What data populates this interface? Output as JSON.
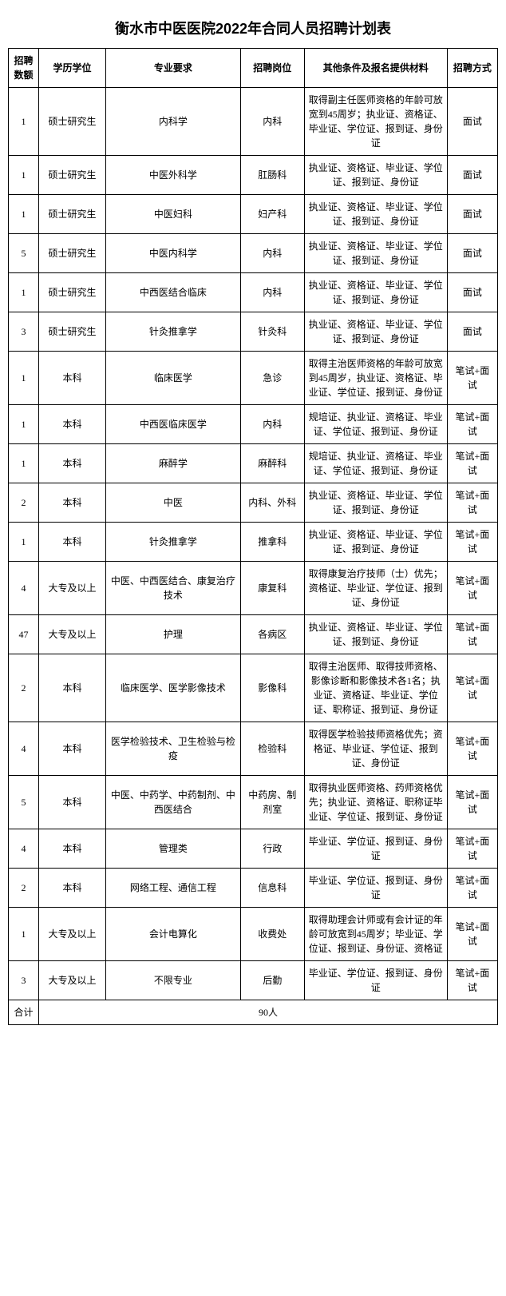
{
  "title": "衡水市中医医院2022年合同人员招聘计划表",
  "columns": {
    "count": "招聘数额",
    "education": "学历学位",
    "major": "专业要求",
    "position": "招聘岗位",
    "conditions": "其他条件及报名提供材料",
    "method": "招聘方式"
  },
  "rows": [
    {
      "count": "1",
      "education": "硕士研究生",
      "major": "内科学",
      "position": "内科",
      "conditions": "取得副主任医师资格的年龄可放宽到45周岁；执业证、资格证、毕业证、学位证、报到证、身份证",
      "method": "面试"
    },
    {
      "count": "1",
      "education": "硕士研究生",
      "major": "中医外科学",
      "position": "肛肠科",
      "conditions": "执业证、资格证、毕业证、学位证、报到证、身份证",
      "method": "面试"
    },
    {
      "count": "1",
      "education": "硕士研究生",
      "major": "中医妇科",
      "position": "妇产科",
      "conditions": "执业证、资格证、毕业证、学位证、报到证、身份证",
      "method": "面试"
    },
    {
      "count": "5",
      "education": "硕士研究生",
      "major": "中医内科学",
      "position": "内科",
      "conditions": "执业证、资格证、毕业证、学位证、报到证、身份证",
      "method": "面试"
    },
    {
      "count": "1",
      "education": "硕士研究生",
      "major": "中西医结合临床",
      "position": "内科",
      "conditions": "执业证、资格证、毕业证、学位证、报到证、身份证",
      "method": "面试"
    },
    {
      "count": "3",
      "education": "硕士研究生",
      "major": "针灸推拿学",
      "position": "针灸科",
      "conditions": "执业证、资格证、毕业证、学位证、报到证、身份证",
      "method": "面试"
    },
    {
      "count": "1",
      "education": "本科",
      "major": "临床医学",
      "position": "急诊",
      "conditions": "取得主治医师资格的年龄可放宽到45周岁，执业证、资格证、毕业证、学位证、报到证、身份证",
      "method": "笔试+面试"
    },
    {
      "count": "1",
      "education": "本科",
      "major": "中西医临床医学",
      "position": "内科",
      "conditions": "规培证、执业证、资格证、毕业证、学位证、报到证、身份证",
      "method": "笔试+面试"
    },
    {
      "count": "1",
      "education": "本科",
      "major": "麻醉学",
      "position": "麻醉科",
      "conditions": "规培证、执业证、资格证、毕业证、学位证、报到证、身份证",
      "method": "笔试+面试"
    },
    {
      "count": "2",
      "education": "本科",
      "major": "中医",
      "position": "内科、外科",
      "conditions": "执业证、资格证、毕业证、学位证、报到证、身份证",
      "method": "笔试+面试"
    },
    {
      "count": "1",
      "education": "本科",
      "major": "针灸推拿学",
      "position": "推拿科",
      "conditions": "执业证、资格证、毕业证、学位证、报到证、身份证",
      "method": "笔试+面试"
    },
    {
      "count": "4",
      "education": "大专及以上",
      "major": "中医、中西医结合、康复治疗技术",
      "position": "康复科",
      "conditions": "取得康复治疗技师（士）优先；资格证、毕业证、学位证、报到证、身份证",
      "method": "笔试+面试"
    },
    {
      "count": "47",
      "education": "大专及以上",
      "major": "护理",
      "position": "各病区",
      "conditions": "执业证、资格证、毕业证、学位证、报到证、身份证",
      "method": "笔试+面试"
    },
    {
      "count": "2",
      "education": "本科",
      "major": "临床医学、医学影像技术",
      "position": "影像科",
      "conditions": "取得主治医师、取得技师资格、影像诊断和影像技术各1名；执业证、资格证、毕业证、学位证、职称证、报到证、身份证",
      "method": "笔试+面试"
    },
    {
      "count": "4",
      "education": "本科",
      "major": "医学检验技术、卫生检验与检疫",
      "position": "检验科",
      "conditions": "取得医学检验技师资格优先；资格证、毕业证、学位证、报到证、身份证",
      "method": "笔试+面试"
    },
    {
      "count": "5",
      "education": "本科",
      "major": "中医、中药学、中药制剂、中西医结合",
      "position": "中药房、制剂室",
      "conditions": "取得执业医师资格、药师资格优先；执业证、资格证、职称证毕业证、学位证、报到证、身份证",
      "method": "笔试+面试"
    },
    {
      "count": "4",
      "education": "本科",
      "major": "管理类",
      "position": "行政",
      "conditions": "毕业证、学位证、报到证、身份证",
      "method": "笔试+面试"
    },
    {
      "count": "2",
      "education": "本科",
      "major": "网络工程、通信工程",
      "position": "信息科",
      "conditions": "毕业证、学位证、报到证、身份证",
      "method": "笔试+面试"
    },
    {
      "count": "1",
      "education": "大专及以上",
      "major": "会计电算化",
      "position": "收费处",
      "conditions": "取得助理会计师或有会计证的年龄可放宽到45周岁；毕业证、学位证、报到证、身份证、资格证",
      "method": "笔试+面试"
    },
    {
      "count": "3",
      "education": "大专及以上",
      "major": "不限专业",
      "position": "后勤",
      "conditions": "毕业证、学位证、报到证、身份证",
      "method": "笔试+面试"
    }
  ],
  "footer": {
    "label": "合计",
    "total": "90人"
  }
}
